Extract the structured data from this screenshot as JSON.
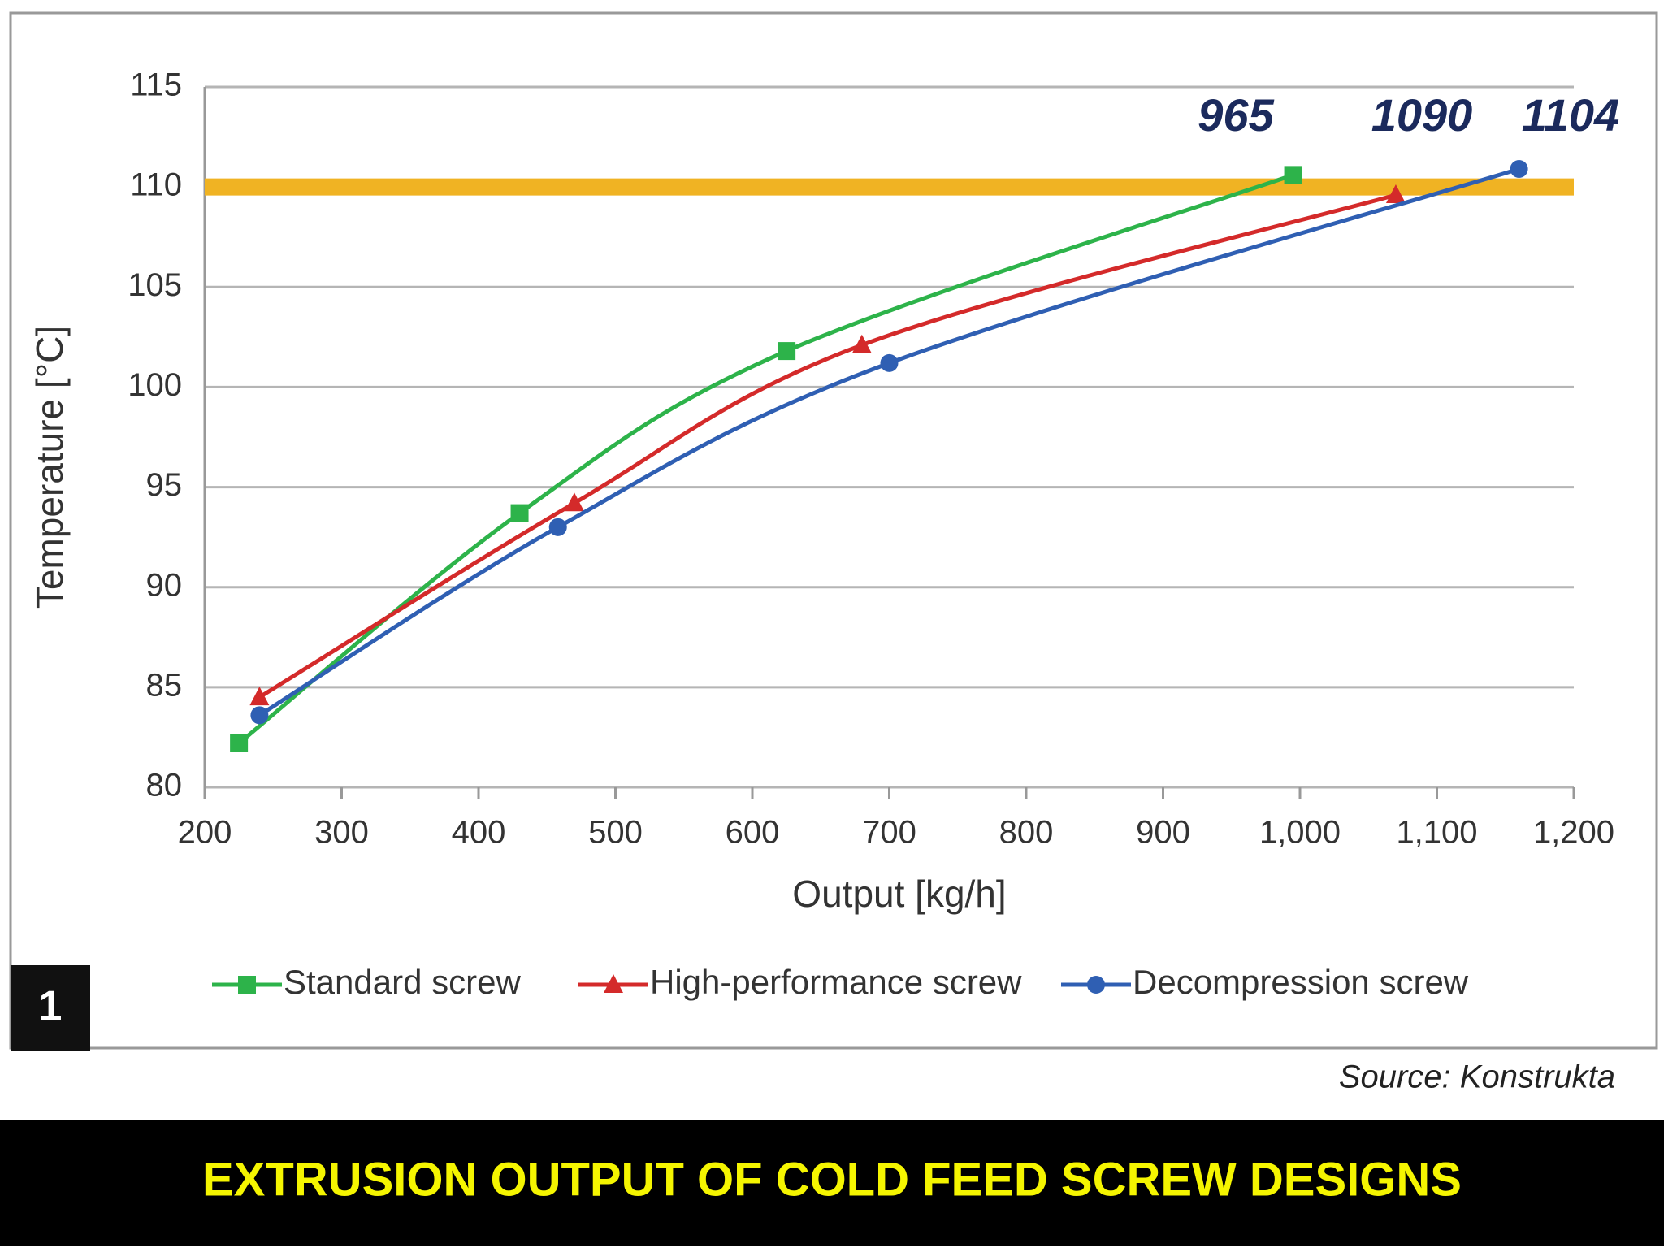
{
  "chart_data": {
    "type": "line",
    "title": "EXTRUSION OUTPUT OF COLD FEED SCREW DESIGNS",
    "source": "Source: Konstrukta",
    "figure_number": "1",
    "x_label": "Output [kg/h]",
    "y_label": "Temperature [°C]",
    "annotations": [
      "965",
      "1090",
      "1104"
    ],
    "reference_line": {
      "value": 110,
      "color": "#f0b323"
    },
    "series": [
      {
        "name": "Standard screw",
        "color": "#2db34a",
        "marker": "square",
        "x": [
          225,
          430,
          625,
          995
        ],
        "values": [
          82.2,
          93.7,
          101.8,
          110.6
        ]
      },
      {
        "name": "High-performance screw",
        "color": "#d42a2a",
        "marker": "triangle",
        "x": [
          240,
          470,
          680,
          1070
        ],
        "values": [
          84.5,
          94.2,
          102.1,
          109.6
        ]
      },
      {
        "name": "Decompression screw",
        "color": "#2f5fb3",
        "marker": "circle",
        "x": [
          240,
          458,
          700,
          1160
        ],
        "values": [
          83.6,
          93.0,
          101.2,
          110.9
        ]
      }
    ],
    "xlim": [
      200,
      1200
    ],
    "xticks": [
      200,
      300,
      400,
      500,
      600,
      700,
      800,
      900,
      {
        "value": 1000,
        "label": "1,000"
      },
      {
        "value": 1100,
        "label": "1,100"
      },
      {
        "value": 1200,
        "label": "1,200"
      }
    ],
    "ylim": [
      80,
      115
    ],
    "yticks": [
      80,
      85,
      90,
      95,
      100,
      105,
      110,
      115
    ],
    "grid": true
  }
}
